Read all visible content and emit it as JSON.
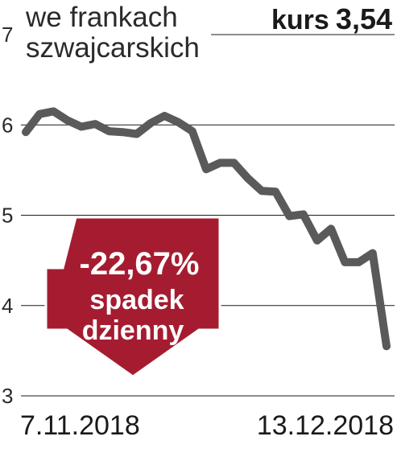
{
  "chart_data": {
    "type": "line",
    "title": "we frankach szwajcarskich",
    "title_lines": [
      "we frankach",
      "szwajcarskich"
    ],
    "ylim": [
      3,
      7
    ],
    "yticks": [
      "3",
      "4",
      "5",
      "6",
      "7"
    ],
    "grid": true,
    "x_labels": [
      "7.11.2018",
      "13.12.2018"
    ],
    "series": [
      {
        "values": [
          5.92,
          6.12,
          6.15,
          6.05,
          5.98,
          6.01,
          5.93,
          5.92,
          5.9,
          6.02,
          6.1,
          6.03,
          5.93,
          5.51,
          5.58,
          5.58,
          5.41,
          5.27,
          5.26,
          4.99,
          5.01,
          4.72,
          4.85,
          4.48,
          4.48,
          4.58,
          3.55
        ]
      }
    ]
  },
  "header": {
    "kurs_label": "kurs",
    "kurs_value": "3,54"
  },
  "badge": {
    "percent": "-22,67%",
    "line1": "spadek",
    "line2": "dzienny"
  },
  "colors": {
    "line": "#5a5a5a",
    "grid": "#1a1a1a",
    "badge": "#a51c30",
    "badge_border": "#ffffff"
  }
}
